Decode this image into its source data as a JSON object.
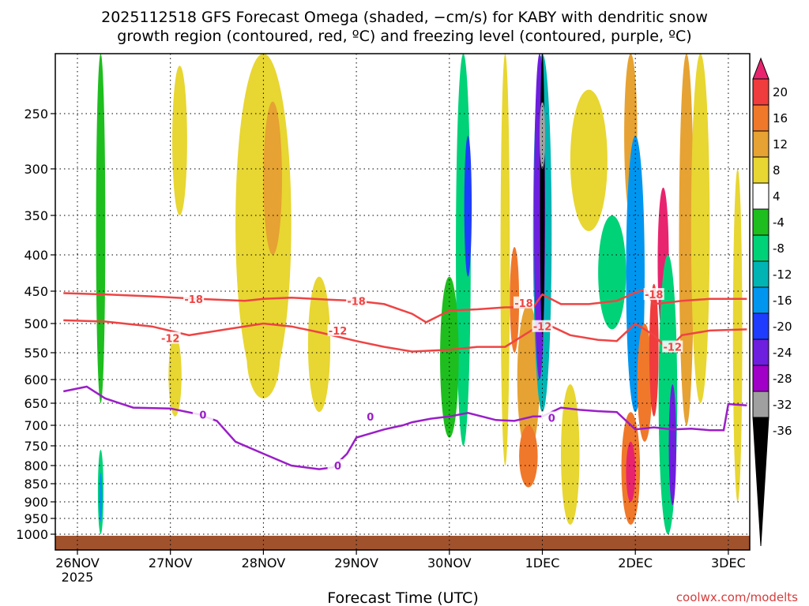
{
  "title": {
    "line1": "2025112518 GFS Forecast Omega (shaded, −cm/s) for KABY with dendritic snow",
    "line2": "growth region (contoured, red, ºC) and freezing level (contoured, purple, ºC)"
  },
  "credit": "coolwx.com/modelts",
  "chart_data": {
    "type": "heatmap",
    "title": "2025112518 GFS Forecast Omega (shaded, −cm/s) for KABY with dendritic snow growth region (contoured, red, ºC) and freezing level (contoured, purple, ºC)",
    "xlabel": "Forecast Time (UTC)",
    "ylabel": "",
    "xlim_days": [
      -0.15,
      7.2
    ],
    "ylim_hpa": [
      1025,
      200
    ],
    "x_ticks": [
      {
        "day": 0,
        "label": "26NOV"
      },
      {
        "day": 1,
        "label": "27NOV"
      },
      {
        "day": 2,
        "label": "28NOV"
      },
      {
        "day": 3,
        "label": "29NOV"
      },
      {
        "day": 4,
        "label": "30NOV"
      },
      {
        "day": 5,
        "label": "1DEC"
      },
      {
        "day": 6,
        "label": "2DEC"
      },
      {
        "day": 7,
        "label": "3DEC"
      }
    ],
    "x_sublabel": "2025",
    "y_ticks": [
      {
        "p": 250,
        "label": "250"
      },
      {
        "p": 300,
        "label": "300"
      },
      {
        "p": 350,
        "label": "350"
      },
      {
        "p": 400,
        "label": "400"
      },
      {
        "p": 450,
        "label": "450"
      },
      {
        "p": 500,
        "label": "500"
      },
      {
        "p": 550,
        "label": "550"
      },
      {
        "p": 600,
        "label": "600"
      },
      {
        "p": 650,
        "label": "650"
      },
      {
        "p": 700,
        "label": "700"
      },
      {
        "p": 750,
        "label": "750"
      },
      {
        "p": 800,
        "label": "800"
      },
      {
        "p": 850,
        "label": "850"
      },
      {
        "p": 900,
        "label": "900"
      },
      {
        "p": 950,
        "label": "950"
      },
      {
        "p": 1000,
        "label": "1000"
      }
    ],
    "grid": true,
    "colorbar": {
      "bins": [
        {
          "lo": 20,
          "hi": 24,
          "color": "#e8246e"
        },
        {
          "lo": 16,
          "hi": 20,
          "color": "#f03c3c"
        },
        {
          "lo": 12,
          "hi": 16,
          "color": "#f0782a"
        },
        {
          "lo": 8,
          "hi": 12,
          "color": "#e6a232"
        },
        {
          "lo": 4,
          "hi": 8,
          "color": "#e8d632"
        },
        {
          "lo": -4,
          "hi": 4,
          "color": "#ffffff"
        },
        {
          "lo": -8,
          "hi": -4,
          "color": "#1ebe1e"
        },
        {
          "lo": -12,
          "hi": -8,
          "color": "#00d278"
        },
        {
          "lo": -16,
          "hi": -12,
          "color": "#00b4b4"
        },
        {
          "lo": -20,
          "hi": -16,
          "color": "#0096f0"
        },
        {
          "lo": -24,
          "hi": -20,
          "color": "#1e3cff"
        },
        {
          "lo": -28,
          "hi": -24,
          "color": "#6e1ede"
        },
        {
          "lo": -32,
          "hi": -28,
          "color": "#a000c8"
        },
        {
          "lo": -36,
          "hi": -32,
          "color": "#a0a0a0"
        },
        {
          "lo": -40,
          "hi": -36,
          "color": "#000000"
        }
      ],
      "tick_labels": [
        "20",
        "16",
        "12",
        "8",
        "4",
        "-4",
        "-8",
        "-12",
        "-16",
        "-20",
        "-24",
        "-28",
        "-32",
        "-36"
      ]
    },
    "omega_regions": [
      {
        "day": 0.25,
        "p": 880,
        "rx": 0.03,
        "rp": 120,
        "value": -12
      },
      {
        "day": 0.25,
        "p": 890,
        "rx": 0.015,
        "rp": 70,
        "value": -20
      },
      {
        "day": 0.25,
        "p": 400,
        "rx": 0.05,
        "rp": 250,
        "value": -6
      },
      {
        "day": 1.1,
        "p": 280,
        "rx": 0.08,
        "rp": 70,
        "value": 5
      },
      {
        "day": 1.05,
        "p": 600,
        "rx": 0.07,
        "rp": 80,
        "value": 5
      },
      {
        "day": 2.0,
        "p": 400,
        "rx": 0.3,
        "rp": 230,
        "value": 5
      },
      {
        "day": 2.1,
        "p": 320,
        "rx": 0.1,
        "rp": 80,
        "value": 9
      },
      {
        "day": 2.0,
        "p": 560,
        "rx": 0.18,
        "rp": 80,
        "value": 5
      },
      {
        "day": 2.6,
        "p": 550,
        "rx": 0.12,
        "rp": 120,
        "value": 5
      },
      {
        "day": 4.15,
        "p": 450,
        "rx": 0.08,
        "rp": 300,
        "value": -10
      },
      {
        "day": 4.2,
        "p": 350,
        "rx": 0.04,
        "rp": 80,
        "value": -22
      },
      {
        "day": 4.0,
        "p": 580,
        "rx": 0.1,
        "rp": 150,
        "value": -6
      },
      {
        "day": 4.6,
        "p": 500,
        "rx": 0.05,
        "rp": 300,
        "value": 7
      },
      {
        "day": 4.7,
        "p": 470,
        "rx": 0.05,
        "rp": 80,
        "value": 13
      },
      {
        "day": 4.85,
        "p": 620,
        "rx": 0.12,
        "rp": 150,
        "value": 10
      },
      {
        "day": 4.85,
        "p": 780,
        "rx": 0.1,
        "rp": 80,
        "value": 12
      },
      {
        "day": 5.0,
        "p": 370,
        "rx": 0.1,
        "rp": 300,
        "value": -14
      },
      {
        "day": 4.97,
        "p": 380,
        "rx": 0.06,
        "rp": 220,
        "value": -26
      },
      {
        "day": 5.0,
        "p": 360,
        "rx": 0.025,
        "rp": 160,
        "value": -38
      },
      {
        "day": 5.0,
        "p": 270,
        "rx": 0.03,
        "rp": 30,
        "value": -34
      },
      {
        "day": 5.3,
        "p": 790,
        "rx": 0.1,
        "rp": 180,
        "value": 7
      },
      {
        "day": 5.5,
        "p": 300,
        "rx": 0.2,
        "rp": 70,
        "value": 5
      },
      {
        "day": 5.75,
        "p": 430,
        "rx": 0.15,
        "rp": 80,
        "value": -12
      },
      {
        "day": 5.95,
        "p": 820,
        "rx": 0.1,
        "rp": 150,
        "value": 12
      },
      {
        "day": 5.95,
        "p": 820,
        "rx": 0.05,
        "rp": 80,
        "value": 22
      },
      {
        "day": 5.95,
        "p": 250,
        "rx": 0.07,
        "rp": 100,
        "value": 10
      },
      {
        "day": 6.0,
        "p": 470,
        "rx": 0.1,
        "rp": 200,
        "value": -18
      },
      {
        "day": 6.1,
        "p": 620,
        "rx": 0.08,
        "rp": 120,
        "value": 12
      },
      {
        "day": 6.2,
        "p": 560,
        "rx": 0.05,
        "rp": 120,
        "value": 18
      },
      {
        "day": 6.3,
        "p": 420,
        "rx": 0.06,
        "rp": 100,
        "value": 20
      },
      {
        "day": 6.35,
        "p": 700,
        "rx": 0.1,
        "rp": 300,
        "value": -10
      },
      {
        "day": 6.4,
        "p": 760,
        "rx": 0.04,
        "rp": 150,
        "value": -26
      },
      {
        "day": 6.55,
        "p": 450,
        "rx": 0.08,
        "rp": 250,
        "value": 10
      },
      {
        "day": 6.7,
        "p": 400,
        "rx": 0.1,
        "rp": 250,
        "value": 7
      },
      {
        "day": 7.1,
        "p": 600,
        "rx": 0.05,
        "rp": 300,
        "value": 5
      }
    ],
    "series": [
      {
        "name": "-18 ºC isotherm",
        "color": "#ee4444",
        "label": "-18",
        "days": [
          -0.15,
          0.3,
          0.8,
          1.3,
          1.8,
          2.0,
          2.3,
          2.7,
          3.0,
          3.3,
          3.6,
          3.75,
          4.0,
          4.3,
          4.6,
          4.9,
          5.0,
          5.2,
          5.5,
          5.8,
          6.0,
          6.1,
          6.2,
          6.5,
          6.8,
          7.2
        ],
        "p": [
          453,
          455,
          458,
          462,
          465,
          462,
          460,
          463,
          465,
          470,
          485,
          498,
          480,
          478,
          475,
          475,
          455,
          470,
          470,
          465,
          452,
          448,
          470,
          465,
          462,
          462
        ],
        "label_positions": [
          {
            "day": 1.25,
            "p": 462
          },
          {
            "day": 3.0,
            "p": 465
          },
          {
            "day": 4.8,
            "p": 468
          },
          {
            "day": 6.2,
            "p": 455
          }
        ]
      },
      {
        "name": "-12 ºC isotherm",
        "color": "#ee4444",
        "label": "-12",
        "days": [
          -0.15,
          0.3,
          0.8,
          1.2,
          1.6,
          2.0,
          2.3,
          2.6,
          3.0,
          3.3,
          3.6,
          4.0,
          4.3,
          4.6,
          4.9,
          5.1,
          5.3,
          5.6,
          5.8,
          6.0,
          6.2,
          6.35,
          6.5,
          6.8,
          7.2
        ],
        "p": [
          495,
          497,
          505,
          520,
          510,
          500,
          505,
          515,
          530,
          540,
          548,
          545,
          540,
          540,
          510,
          505,
          520,
          528,
          530,
          500,
          520,
          545,
          520,
          512,
          510
        ],
        "label_positions": [
          {
            "day": 1.0,
            "p": 525
          },
          {
            "day": 2.8,
            "p": 512
          },
          {
            "day": 5.0,
            "p": 505
          },
          {
            "day": 6.4,
            "p": 540
          }
        ]
      },
      {
        "name": "0 ºC freezing level",
        "color": "#9a1ec8",
        "label": "0",
        "days": [
          -0.15,
          0.1,
          0.3,
          0.6,
          1.0,
          1.3,
          1.5,
          1.7,
          2.0,
          2.3,
          2.6,
          2.75,
          2.9,
          3.0,
          3.3,
          3.5,
          3.6,
          3.8,
          4.0,
          4.2,
          4.5,
          4.7,
          4.9,
          5.0,
          5.2,
          5.4,
          5.6,
          5.8,
          6.0,
          6.2,
          6.4,
          6.6,
          6.8,
          6.95,
          7.0,
          7.2
        ],
        "p": [
          625,
          615,
          640,
          660,
          662,
          675,
          690,
          740,
          770,
          800,
          810,
          805,
          770,
          730,
          710,
          700,
          693,
          685,
          680,
          672,
          688,
          690,
          680,
          680,
          660,
          665,
          668,
          670,
          710,
          705,
          710,
          708,
          712,
          712,
          652,
          655
        ],
        "label_positions": [
          {
            "day": 1.35,
            "p": 676
          },
          {
            "day": 3.15,
            "p": 680
          },
          {
            "day": 5.1,
            "p": 683
          },
          {
            "day": 2.8,
            "p": 800
          }
        ]
      }
    ],
    "annotations": [
      "-18",
      "-12",
      "0"
    ]
  }
}
